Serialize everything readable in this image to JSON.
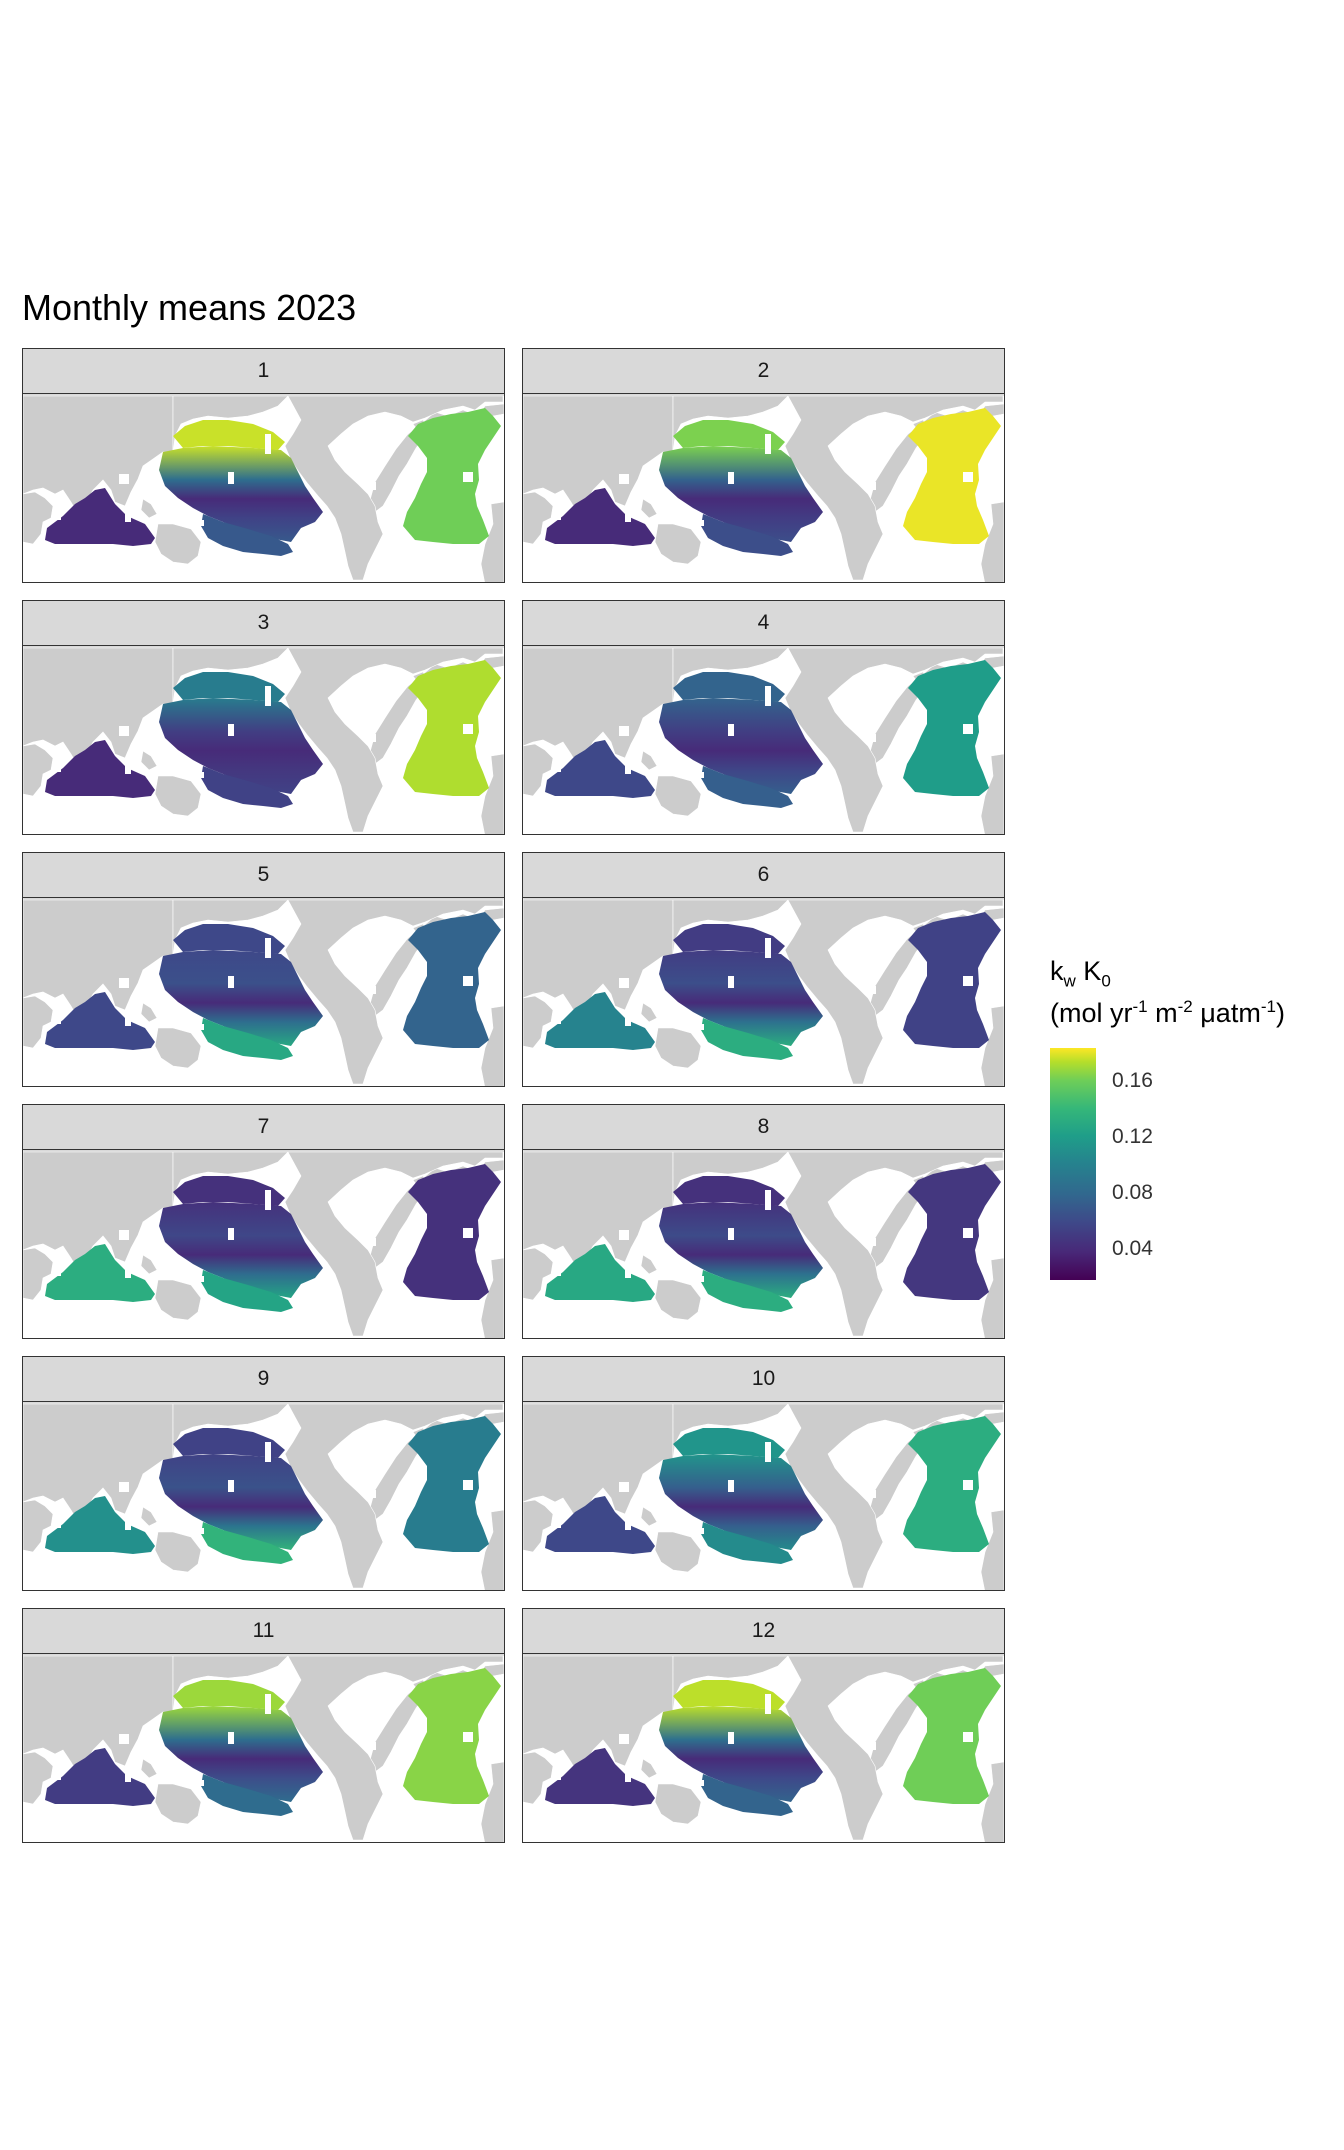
{
  "title": "Monthly means 2023",
  "panels": [
    {
      "label": "1",
      "nh": 0.92,
      "atl": 0.78,
      "so": 0.28,
      "io": 0.12
    },
    {
      "label": "2",
      "nh": 0.8,
      "atl": 0.97,
      "so": 0.24,
      "io": 0.12
    },
    {
      "label": "3",
      "nh": 0.42,
      "atl": 0.88,
      "so": 0.2,
      "io": 0.12
    },
    {
      "label": "4",
      "nh": 0.32,
      "atl": 0.55,
      "so": 0.3,
      "io": 0.22
    },
    {
      "label": "5",
      "nh": 0.22,
      "atl": 0.32,
      "so": 0.6,
      "io": 0.22
    },
    {
      "label": "6",
      "nh": 0.18,
      "atl": 0.2,
      "so": 0.62,
      "io": 0.45
    },
    {
      "label": "7",
      "nh": 0.14,
      "atl": 0.14,
      "so": 0.58,
      "io": 0.62
    },
    {
      "label": "8",
      "nh": 0.14,
      "atl": 0.16,
      "so": 0.62,
      "io": 0.6
    },
    {
      "label": "9",
      "nh": 0.2,
      "atl": 0.42,
      "so": 0.65,
      "io": 0.5
    },
    {
      "label": "10",
      "nh": 0.52,
      "atl": 0.62,
      "so": 0.48,
      "io": 0.22
    },
    {
      "label": "11",
      "nh": 0.85,
      "atl": 0.82,
      "so": 0.35,
      "io": 0.18
    },
    {
      "label": "12",
      "nh": 0.9,
      "atl": 0.78,
      "so": 0.32,
      "io": 0.15
    }
  ],
  "legend": {
    "title_var": "k",
    "title_sub": "w",
    "title_var2": "K",
    "title_sub2": "0",
    "unit_open": "(mol yr",
    "unit_e1": "-1",
    "unit_m": " m",
    "unit_e2": "-2",
    "unit_uatm": " μatm",
    "unit_e3": "-1",
    "unit_close": ")",
    "ticks": [
      "0.04",
      "0.08",
      "0.12",
      "0.16"
    ],
    "colorscale": [
      "#440154",
      "#482878",
      "#3e4989",
      "#31688e",
      "#26828e",
      "#1f9e89",
      "#35b779",
      "#6ece58",
      "#b5de2b",
      "#fde725"
    ]
  },
  "colors": {
    "land": "#cccccc",
    "strip": "#d9d9d9",
    "border": "#333333"
  }
}
